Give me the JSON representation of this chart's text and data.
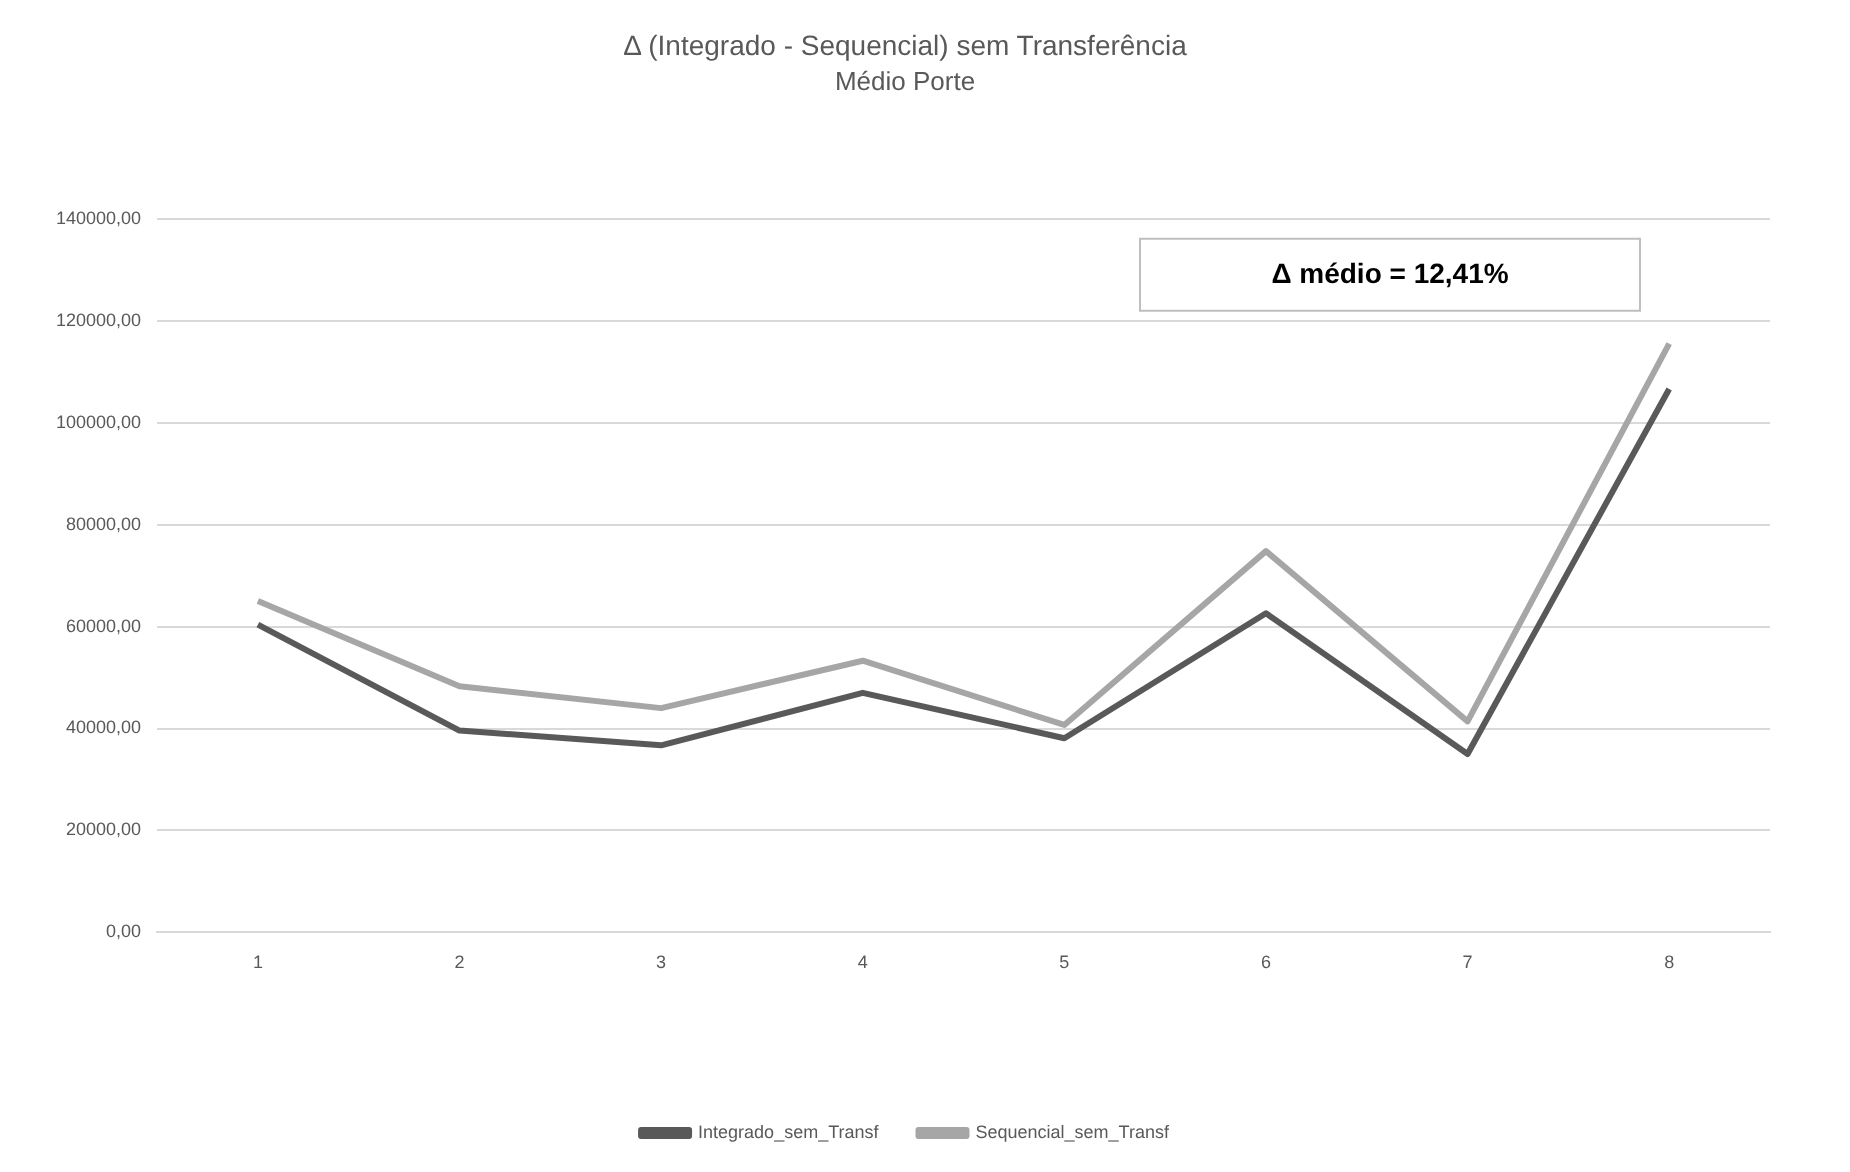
{
  "chart_data": {
    "type": "line",
    "title": "Δ (Integrado - Sequencial) sem Transferência",
    "subtitle": "Médio Porte",
    "categories": [
      "1",
      "2",
      "3",
      "4",
      "5",
      "6",
      "7",
      "8"
    ],
    "series": [
      {
        "name": "Integrado_sem_Transf",
        "color": "#595959",
        "values": [
          60400,
          39600,
          36700,
          47000,
          38100,
          62600,
          35000,
          106600
        ]
      },
      {
        "name": "Sequencial_sem_Transf",
        "color": "#a6a6a6",
        "values": [
          65000,
          48300,
          44000,
          53300,
          40700,
          74800,
          41400,
          115500
        ]
      }
    ],
    "ylim": [
      0,
      140000
    ],
    "yticks": [
      {
        "value": 0,
        "label": "0,00"
      },
      {
        "value": 20000,
        "label": "20000,00"
      },
      {
        "value": 40000,
        "label": "40000,00"
      },
      {
        "value": 60000,
        "label": "60000,00"
      },
      {
        "value": 80000,
        "label": "80000,00"
      },
      {
        "value": 100000,
        "label": "100000,00"
      },
      {
        "value": 120000,
        "label": "120000,00"
      },
      {
        "value": 140000,
        "label": "140000,00"
      }
    ],
    "grid": "y",
    "legend": "bottom",
    "marker": "none",
    "line_style": "solid",
    "annotations": [
      "Δ médio = 12,41%"
    ]
  }
}
